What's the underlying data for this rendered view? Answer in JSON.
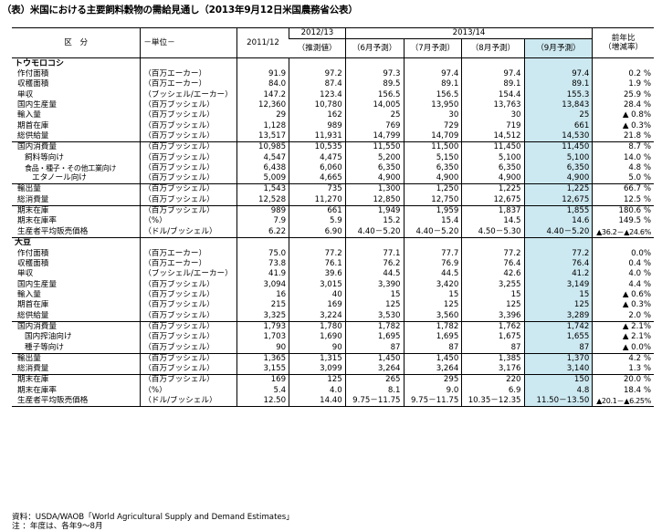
{
  "title": "（表）米国における主要飼料穀物の需給見通し（2013年9月12日米国農務省公表）",
  "header": {
    "item": "区　分",
    "unit": "－単位－",
    "y2011": "2011/12",
    "y2012": "2012/13",
    "y2012_sub": "（推測値）",
    "y2013": "2013/14",
    "jun": "（6月予測）",
    "jul": "（7月予測）",
    "aug": "（8月予測）",
    "sep": "（9月予測）",
    "yoy": "前年比",
    "yoy_sub": "（増減率）"
  },
  "corn": {
    "name": "トウモロコシ",
    "rows": [
      {
        "label": "作付面積",
        "unit": "（百万エーカー）",
        "v": [
          "91.9",
          "97.2",
          "97.3",
          "97.4",
          "97.4",
          "97.4",
          "0.2 %"
        ]
      },
      {
        "label": "収穫面積",
        "unit": "（百万エーカー）",
        "v": [
          "84.0",
          "87.4",
          "89.5",
          "89.1",
          "89.1",
          "89.1",
          "1.9 %"
        ]
      },
      {
        "label": "単収",
        "unit": "（ブッシェル/エーカー）",
        "v": [
          "147.2",
          "123.4",
          "156.5",
          "156.5",
          "154.4",
          "155.3",
          "25.9 %"
        ]
      },
      {
        "label": "国内生産量",
        "unit": "（百万ブッシェル）",
        "v": [
          "12,360",
          "10,780",
          "14,005",
          "13,950",
          "13,763",
          "13,843",
          "28.4 %"
        ]
      },
      {
        "label": "輸入量",
        "unit": "（百万ブッシェル）",
        "v": [
          "29",
          "162",
          "25",
          "30",
          "30",
          "25",
          "▲ 0.8%"
        ]
      },
      {
        "label": "期首在庫",
        "unit": "（百万ブッシェル）",
        "v": [
          "1,128",
          "989",
          "769",
          "729",
          "719",
          "661",
          "▲ 0.3%"
        ]
      },
      {
        "label": "総供給量",
        "unit": "（百万ブッシェル）",
        "v": [
          "13,517",
          "11,931",
          "14,799",
          "14,709",
          "14,512",
          "14,530",
          "21.8 %"
        ]
      },
      {
        "label": "国内消費量",
        "unit": "（百万ブッシェル）",
        "v": [
          "10,985",
          "10,535",
          "11,550",
          "11,500",
          "11,450",
          "11,450",
          "8.7 %"
        ]
      },
      {
        "label": "飼料等向け",
        "unit": "（百万ブッシェル）",
        "v": [
          "4,547",
          "4,475",
          "5,200",
          "5,150",
          "5,100",
          "5,100",
          "14.0 %"
        ]
      },
      {
        "label": "食品・種子・その他工業向け",
        "unit": "（百万ブッシェル）",
        "v": [
          "6,438",
          "6,060",
          "6,350",
          "6,350",
          "6,350",
          "6,350",
          "4.8 %"
        ]
      },
      {
        "label": "エタノール向け",
        "unit": "（百万ブッシェル）",
        "v": [
          "5,009",
          "4,665",
          "4,900",
          "4,900",
          "4,900",
          "4,900",
          "5.0 %"
        ]
      },
      {
        "label": "輸出量",
        "unit": "（百万ブッシェル）",
        "v": [
          "1,543",
          "735",
          "1,300",
          "1,250",
          "1,225",
          "1,225",
          "66.7 %"
        ]
      },
      {
        "label": "総消費量",
        "unit": "（百万ブッシェル）",
        "v": [
          "12,528",
          "11,270",
          "12,850",
          "12,750",
          "12,675",
          "12,675",
          "12.5 %"
        ]
      },
      {
        "label": "期末在庫",
        "unit": "（百万ブッシェル）",
        "v": [
          "989",
          "661",
          "1,949",
          "1,959",
          "1,837",
          "1,855",
          "180.6 %"
        ]
      },
      {
        "label": "期末在庫率",
        "unit": "（%）",
        "v": [
          "7.9",
          "5.9",
          "15.2",
          "15.4",
          "14.5",
          "14.6",
          "149.5 %"
        ]
      },
      {
        "label": "生産者平均販売価格",
        "unit": "（ドル/ブッシェル）",
        "v": [
          "6.22",
          "6.90",
          "4.40－5.20",
          "4.40－5.20",
          "4.50－5.30",
          "4.40－5.20",
          "▲36.2－▲24.6%"
        ]
      }
    ]
  },
  "soy": {
    "name": "大豆",
    "rows": [
      {
        "label": "作付面積",
        "unit": "（百万エーカー）",
        "v": [
          "75.0",
          "77.2",
          "77.1",
          "77.7",
          "77.2",
          "77.2",
          "0.0%"
        ]
      },
      {
        "label": "収穫面積",
        "unit": "（百万エーカー）",
        "v": [
          "73.8",
          "76.1",
          "76.2",
          "76.9",
          "76.4",
          "76.4",
          "0.4 %"
        ]
      },
      {
        "label": "単収",
        "unit": "（ブッシェル/エーカー）",
        "v": [
          "41.9",
          "39.6",
          "44.5",
          "44.5",
          "42.6",
          "41.2",
          "4.0 %"
        ]
      },
      {
        "label": "国内生産量",
        "unit": "（百万ブッシェル）",
        "v": [
          "3,094",
          "3,015",
          "3,390",
          "3,420",
          "3,255",
          "3,149",
          "4.4 %"
        ]
      },
      {
        "label": "輸入量",
        "unit": "（百万ブッシェル）",
        "v": [
          "16",
          "40",
          "15",
          "15",
          "15",
          "15",
          "▲ 0.6%"
        ]
      },
      {
        "label": "期首在庫",
        "unit": "（百万ブッシェル）",
        "v": [
          "215",
          "169",
          "125",
          "125",
          "125",
          "125",
          "▲ 0.3%"
        ]
      },
      {
        "label": "総供給量",
        "unit": "（百万ブッシェル）",
        "v": [
          "3,325",
          "3,224",
          "3,530",
          "3,560",
          "3,396",
          "3,289",
          "2.0 %"
        ]
      },
      {
        "label": "国内消費量",
        "unit": "（百万ブッシェル）",
        "v": [
          "1,793",
          "1,780",
          "1,782",
          "1,782",
          "1,762",
          "1,742",
          "▲ 2.1%"
        ]
      },
      {
        "label": "国内搾油向け",
        "unit": "（百万ブッシェル）",
        "v": [
          "1,703",
          "1,690",
          "1,695",
          "1,695",
          "1,675",
          "1,655",
          "▲ 2.1%"
        ]
      },
      {
        "label": "種子等向け",
        "unit": "（百万ブッシェル）",
        "v": [
          "90",
          "90",
          "87",
          "87",
          "87",
          "87",
          "▲ 0.0%"
        ]
      },
      {
        "label": "輸出量",
        "unit": "（百万ブッシェル）",
        "v": [
          "1,365",
          "1,315",
          "1,450",
          "1,450",
          "1,385",
          "1,370",
          "4.2 %"
        ]
      },
      {
        "label": "総消費量",
        "unit": "（百万ブッシェル）",
        "v": [
          "3,155",
          "3,099",
          "3,264",
          "3,264",
          "3,176",
          "3,140",
          "1.3 %"
        ]
      },
      {
        "label": "期末在庫",
        "unit": "（百万ブッシェル）",
        "v": [
          "169",
          "125",
          "265",
          "295",
          "220",
          "150",
          "20.0 %"
        ]
      },
      {
        "label": "期末在庫率",
        "unit": "（%）",
        "v": [
          "5.4",
          "4.0",
          "8.1",
          "9.0",
          "6.9",
          "4.8",
          "18.4 %"
        ]
      },
      {
        "label": "生産者平均販売価格",
        "unit": "（ドル/ブッシェル）",
        "v": [
          "12.50",
          "14.40",
          "9.75－11.75",
          "9.75－11.75",
          "10.35－12.35",
          "11.50－13.50",
          "▲20.1－▲6.25%"
        ]
      }
    ]
  },
  "notes": {
    "source": "資料：USDA/WAOB「World Agricultural Supply and Demand Estimates」",
    "note": "注 ：年度は、各年9～8月"
  }
}
